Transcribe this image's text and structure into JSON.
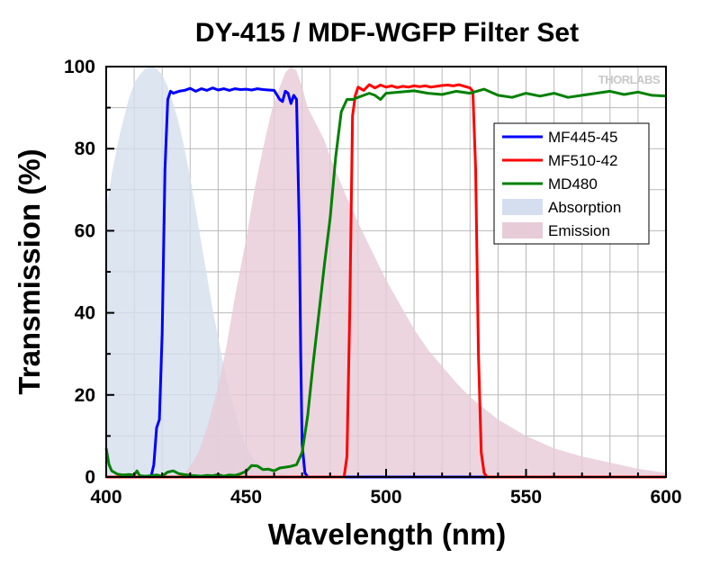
{
  "chart_data": {
    "type": "line",
    "title": "DY-415 / MDF-WGFP Filter Set",
    "xlabel": "Wavelength (nm)",
    "ylabel": "Transmission (%)",
    "xlim": [
      400,
      600
    ],
    "ylim": [
      0,
      100
    ],
    "xticks": [
      400,
      450,
      500,
      550,
      600
    ],
    "yticks": [
      0,
      20,
      40,
      60,
      80,
      100
    ],
    "grid": true,
    "brand": "THORLABS",
    "legend_position": "top-right",
    "series": [
      {
        "name": "Absorption",
        "kind": "area",
        "color": "#d5deee",
        "x": [
          400,
          402,
          405,
          408,
          410,
          412,
          414,
          416,
          418,
          420,
          422,
          424,
          426,
          428,
          430,
          432,
          434,
          436,
          438,
          440,
          442,
          444,
          446,
          448,
          450,
          452,
          455,
          458,
          462,
          466,
          470,
          475
        ],
        "y": [
          65,
          74,
          84,
          92,
          96,
          98,
          99.5,
          100,
          99.5,
          98,
          95,
          91,
          86,
          80,
          73,
          65,
          57,
          49,
          41,
          34,
          27,
          21,
          16,
          11,
          7.5,
          5,
          3,
          1.8,
          0.9,
          0.4,
          0.1,
          0
        ]
      },
      {
        "name": "Emission",
        "kind": "area",
        "color": "#e7cbd7",
        "x": [
          425,
          428,
          430,
          433,
          436,
          440,
          443,
          446,
          450,
          453,
          456,
          459,
          462,
          464,
          466,
          468,
          470,
          472,
          475,
          478,
          480,
          483,
          486,
          490,
          495,
          500,
          505,
          510,
          515,
          520,
          525,
          530,
          540,
          550,
          560,
          570,
          580,
          590,
          600
        ],
        "y": [
          0,
          1,
          2.5,
          6,
          12,
          22,
          32,
          44,
          58,
          70,
          80,
          89,
          95,
          98.5,
          100,
          99,
          95,
          90,
          86,
          82,
          78,
          73,
          68,
          62,
          55,
          48,
          42,
          36,
          31,
          27,
          23,
          19.5,
          14,
          10,
          7,
          5,
          3.5,
          2,
          1
        ]
      },
      {
        "name": "MF445-45",
        "kind": "line",
        "color": "#0000ff",
        "x": [
          400,
          416,
          417,
          418,
          419,
          420,
          421,
          422,
          423,
          424,
          426,
          428,
          430,
          432,
          434,
          436,
          438,
          440,
          442,
          444,
          446,
          448,
          450,
          452,
          454,
          456,
          458,
          460,
          462,
          463,
          464,
          465,
          466,
          467,
          468,
          469,
          469.5,
          470,
          471,
          472,
          600
        ],
        "y": [
          0,
          0,
          3,
          12,
          14,
          35,
          75,
          92,
          94,
          93.5,
          94,
          94.2,
          94.7,
          94,
          94.6,
          94.2,
          94.8,
          94.3,
          94.6,
          94.2,
          94.6,
          94.4,
          94.5,
          94.3,
          94.6,
          94.4,
          94.3,
          94.2,
          92,
          91.5,
          94,
          93.5,
          91,
          93,
          92,
          60,
          30,
          8,
          1,
          0,
          0
        ]
      },
      {
        "name": "MF510-42",
        "kind": "line",
        "color": "#ff0000",
        "x": [
          400,
          485,
          486,
          487,
          488,
          489,
          490,
          492,
          494,
          496,
          498,
          500,
          502,
          504,
          506,
          508,
          510,
          512,
          514,
          516,
          518,
          520,
          522,
          524,
          526,
          528,
          530,
          531,
          532,
          533,
          534,
          535,
          536,
          600
        ],
        "y": [
          0,
          0,
          5,
          40,
          88,
          93,
          95,
          94.2,
          95.6,
          94.8,
          95.5,
          95,
          95.3,
          94.9,
          95.2,
          95,
          95.3,
          95.1,
          95.3,
          95,
          95.2,
          95.4,
          95.5,
          95.3,
          95.6,
          95.2,
          94.8,
          94,
          75,
          30,
          6,
          1,
          0,
          0
        ]
      },
      {
        "name": "MD480",
        "kind": "line",
        "color": "#008000",
        "x": [
          400,
          401,
          402,
          404,
          406,
          408,
          410,
          411,
          412,
          414,
          416,
          418,
          420,
          422,
          424,
          426,
          428,
          430,
          432,
          434,
          436,
          438,
          440,
          442,
          444,
          446,
          448,
          450,
          452,
          454,
          456,
          458,
          460,
          462,
          464,
          466,
          468,
          470,
          472,
          474,
          476,
          478,
          480,
          482,
          484,
          486,
          488,
          490,
          492,
          494,
          496,
          498,
          500,
          505,
          510,
          515,
          520,
          525,
          530,
          535,
          540,
          545,
          550,
          555,
          560,
          565,
          570,
          575,
          580,
          585,
          590,
          595,
          600
        ],
        "y": [
          7,
          3,
          1.5,
          0.7,
          0.5,
          0.6,
          0.5,
          1.5,
          0.3,
          0.2,
          0.3,
          0.5,
          0.2,
          1.2,
          1.5,
          0.8,
          0.6,
          0.4,
          0.3,
          0.2,
          0.4,
          0.3,
          0.6,
          0.2,
          0.5,
          0.4,
          0.8,
          1.4,
          2.8,
          2.7,
          1.8,
          1.9,
          1.5,
          2.2,
          2.4,
          2.6,
          3.0,
          6,
          15,
          28,
          40,
          52,
          63,
          78,
          89,
          92,
          92,
          92.5,
          93,
          93.5,
          93,
          92,
          93.5,
          93.8,
          94.1,
          93.5,
          93.2,
          94,
          93.5,
          94.5,
          93,
          92.5,
          93.5,
          92.8,
          93.5,
          92.5,
          93,
          93.5,
          94,
          93.2,
          93.8,
          93,
          92.8
        ]
      }
    ],
    "legend": [
      "MF445-45",
      "MF510-42",
      "MD480",
      "Absorption",
      "Emission"
    ]
  }
}
